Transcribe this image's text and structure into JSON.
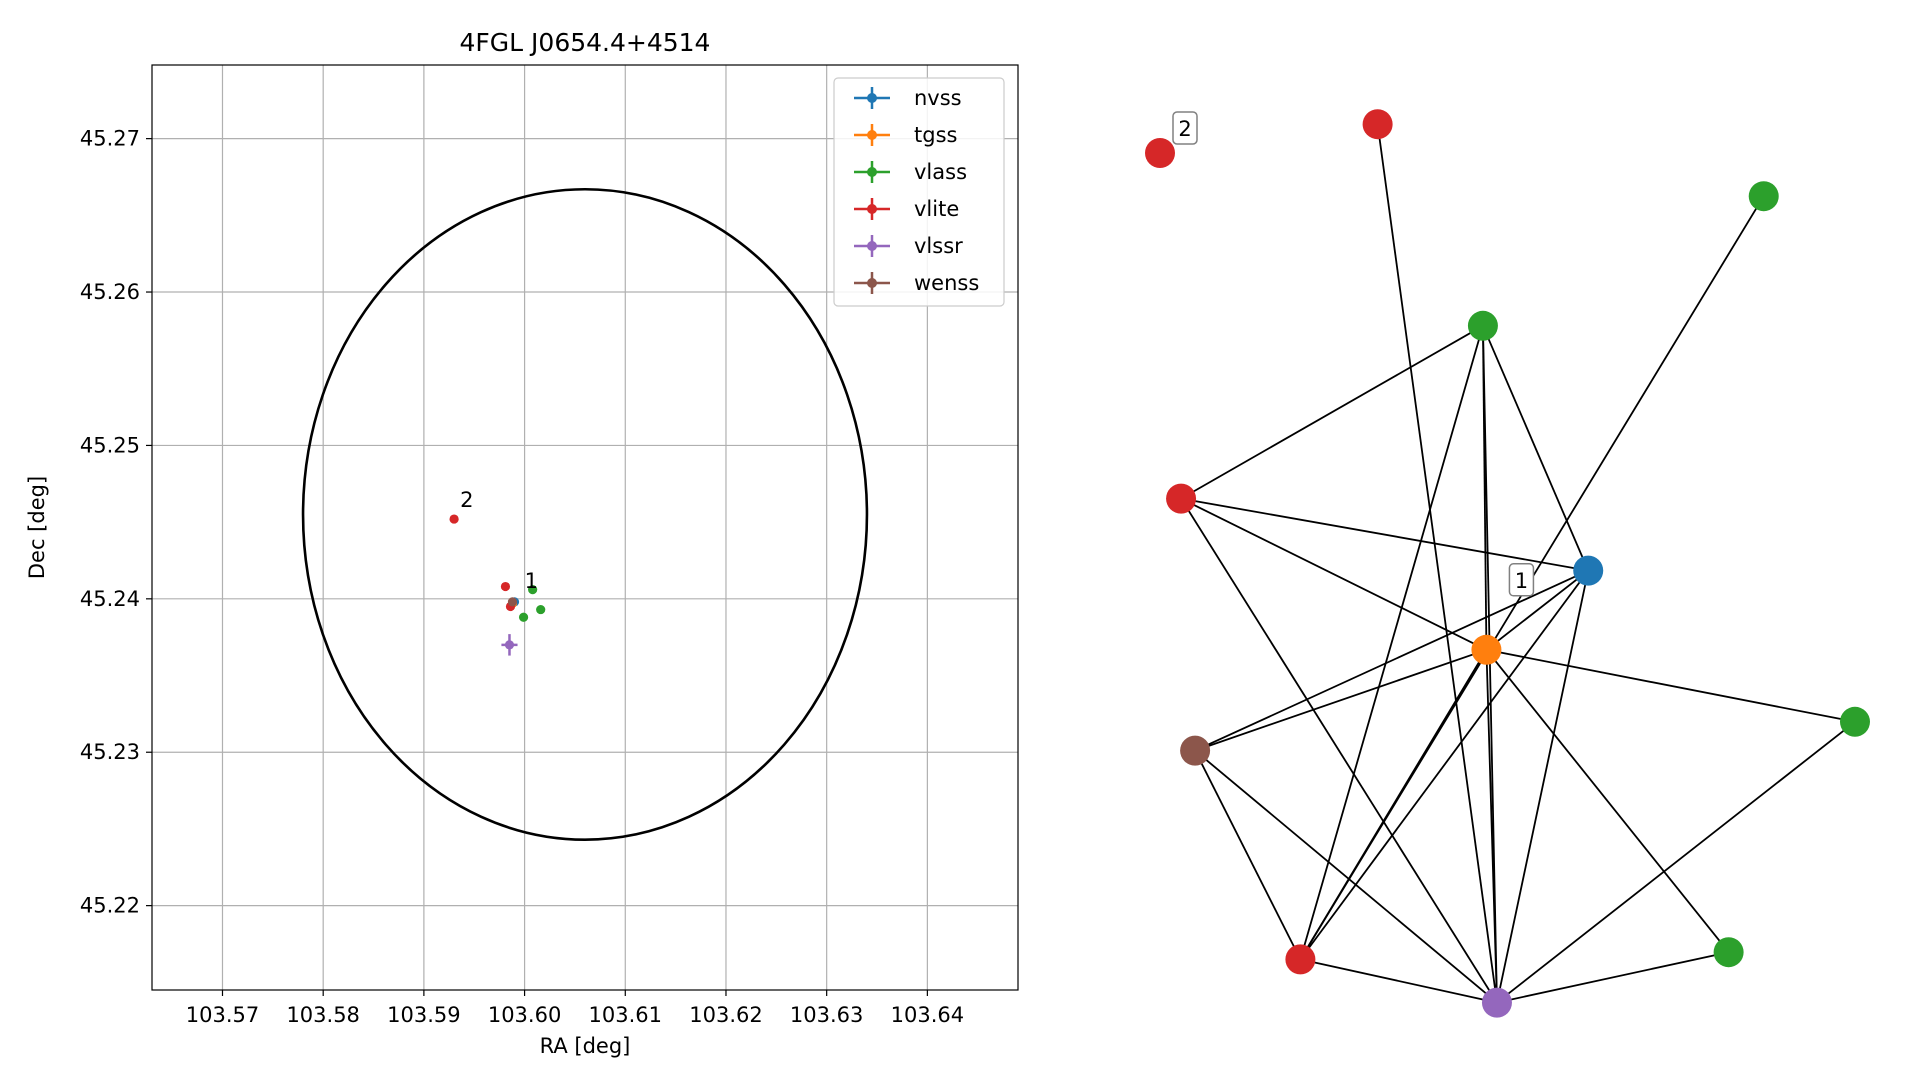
{
  "chart_data": [
    {
      "type": "scatter",
      "title": "4FGL J0654.4+4514",
      "xlabel": "RA [deg]",
      "ylabel": "Dec [deg]",
      "xlim": [
        103.563,
        103.649
      ],
      "ylim": [
        45.2145,
        45.2748
      ],
      "x_ticks": [
        103.57,
        103.58,
        103.59,
        103.6,
        103.61,
        103.62,
        103.63,
        103.64
      ],
      "x_tick_labels": [
        "103.57",
        "103.58",
        "103.59",
        "103.60",
        "103.61",
        "103.62",
        "103.63",
        "103.64"
      ],
      "y_ticks": [
        45.22,
        45.23,
        45.24,
        45.25,
        45.26,
        45.27
      ],
      "y_tick_labels": [
        "45.22",
        "45.23",
        "45.24",
        "45.25",
        "45.26",
        "45.27"
      ],
      "grid": true,
      "legend_position": "top-right",
      "ellipse": {
        "center_ra": 103.606,
        "center_dec": 45.2455,
        "ra_radius": 0.028,
        "dec_radius": 0.0212
      },
      "series": [
        {
          "name": "nvss",
          "color": "#1f77b4",
          "points": [
            {
              "ra": 103.599,
              "dec": 45.2398,
              "ra_err": 0.0001,
              "dec_err": 0.0001
            }
          ]
        },
        {
          "name": "tgss",
          "color": "#ff7f0e",
          "points": [
            {
              "ra": 103.5988,
              "dec": 45.2397,
              "ra_err": 0.0001,
              "dec_err": 0.0001
            }
          ]
        },
        {
          "name": "vlass",
          "color": "#2ca02c",
          "points": [
            {
              "ra": 103.6008,
              "dec": 45.2406,
              "ra_err": 0.0001,
              "dec_err": 0.0001
            },
            {
              "ra": 103.5999,
              "dec": 45.2388,
              "ra_err": 0.0001,
              "dec_err": 0.0001
            },
            {
              "ra": 103.6016,
              "dec": 45.2393,
              "ra_err": 0.0001,
              "dec_err": 0.0001
            }
          ]
        },
        {
          "name": "vlite",
          "color": "#d62728",
          "points": [
            {
              "ra": 103.5981,
              "dec": 45.2408,
              "ra_err": 0.0001,
              "dec_err": 0.0001
            },
            {
              "ra": 103.5986,
              "dec": 45.2395,
              "ra_err": 0.0001,
              "dec_err": 0.0001
            },
            {
              "ra": 103.593,
              "dec": 45.2452,
              "ra_err": 0.0001,
              "dec_err": 0.0001
            }
          ]
        },
        {
          "name": "vlssr",
          "color": "#9467bd",
          "points": [
            {
              "ra": 103.5985,
              "dec": 45.237,
              "ra_err": 0.0008,
              "dec_err": 0.0007
            }
          ]
        },
        {
          "name": "wenss",
          "color": "#8c564b",
          "points": [
            {
              "ra": 103.5988,
              "dec": 45.2398,
              "ra_err": 0.0002,
              "dec_err": 0.0002
            }
          ]
        }
      ],
      "annotations": [
        {
          "text": "1",
          "ra": 103.6,
          "dec": 45.2407
        },
        {
          "text": "2",
          "ra": 103.5936,
          "dec": 45.246
        }
      ]
    },
    {
      "type": "network",
      "nodes": [
        {
          "id": "n0",
          "color": "#d62728",
          "nx": 0.0,
          "ny": 1.0
        },
        {
          "id": "n1",
          "color": "#d62728",
          "nx": 0.31,
          "ny": 1.04
        },
        {
          "id": "n2",
          "color": "#2ca02c",
          "nx": 0.86,
          "ny": 0.94
        },
        {
          "id": "n3",
          "color": "#2ca02c",
          "nx": 0.46,
          "ny": 0.76
        },
        {
          "id": "n4",
          "color": "#d62728",
          "nx": 0.03,
          "ny": 0.52
        },
        {
          "id": "n5",
          "color": "#1f77b4",
          "nx": 0.61,
          "ny": 0.42
        },
        {
          "id": "n6",
          "color": "#ff7f0e",
          "nx": 0.465,
          "ny": 0.31
        },
        {
          "id": "n7",
          "color": "#2ca02c",
          "nx": 0.99,
          "ny": 0.21
        },
        {
          "id": "n8",
          "color": "#8c564b",
          "nx": 0.05,
          "ny": 0.17
        },
        {
          "id": "n9",
          "color": "#2ca02c",
          "nx": 0.81,
          "ny": -0.11
        },
        {
          "id": "n10",
          "color": "#d62728",
          "nx": 0.2,
          "ny": -0.12
        },
        {
          "id": "n11",
          "color": "#9467bd",
          "nx": 0.48,
          "ny": -0.18
        }
      ],
      "edges": [
        [
          "n1",
          "n11"
        ],
        [
          "n2",
          "n10"
        ],
        [
          "n3",
          "n4"
        ],
        [
          "n3",
          "n5"
        ],
        [
          "n3",
          "n6"
        ],
        [
          "n3",
          "n10"
        ],
        [
          "n3",
          "n11"
        ],
        [
          "n4",
          "n5"
        ],
        [
          "n4",
          "n6"
        ],
        [
          "n4",
          "n11"
        ],
        [
          "n5",
          "n6"
        ],
        [
          "n5",
          "n8"
        ],
        [
          "n5",
          "n10"
        ],
        [
          "n5",
          "n11"
        ],
        [
          "n6",
          "n7"
        ],
        [
          "n6",
          "n8"
        ],
        [
          "n6",
          "n9"
        ],
        [
          "n6",
          "n10"
        ],
        [
          "n6",
          "n11"
        ],
        [
          "n7",
          "n11"
        ],
        [
          "n8",
          "n10"
        ],
        [
          "n8",
          "n11"
        ],
        [
          "n9",
          "n11"
        ],
        [
          "n10",
          "n11"
        ]
      ],
      "labels": [
        {
          "text": "1",
          "near": "n6"
        },
        {
          "text": "2",
          "near": "n0"
        }
      ]
    }
  ]
}
